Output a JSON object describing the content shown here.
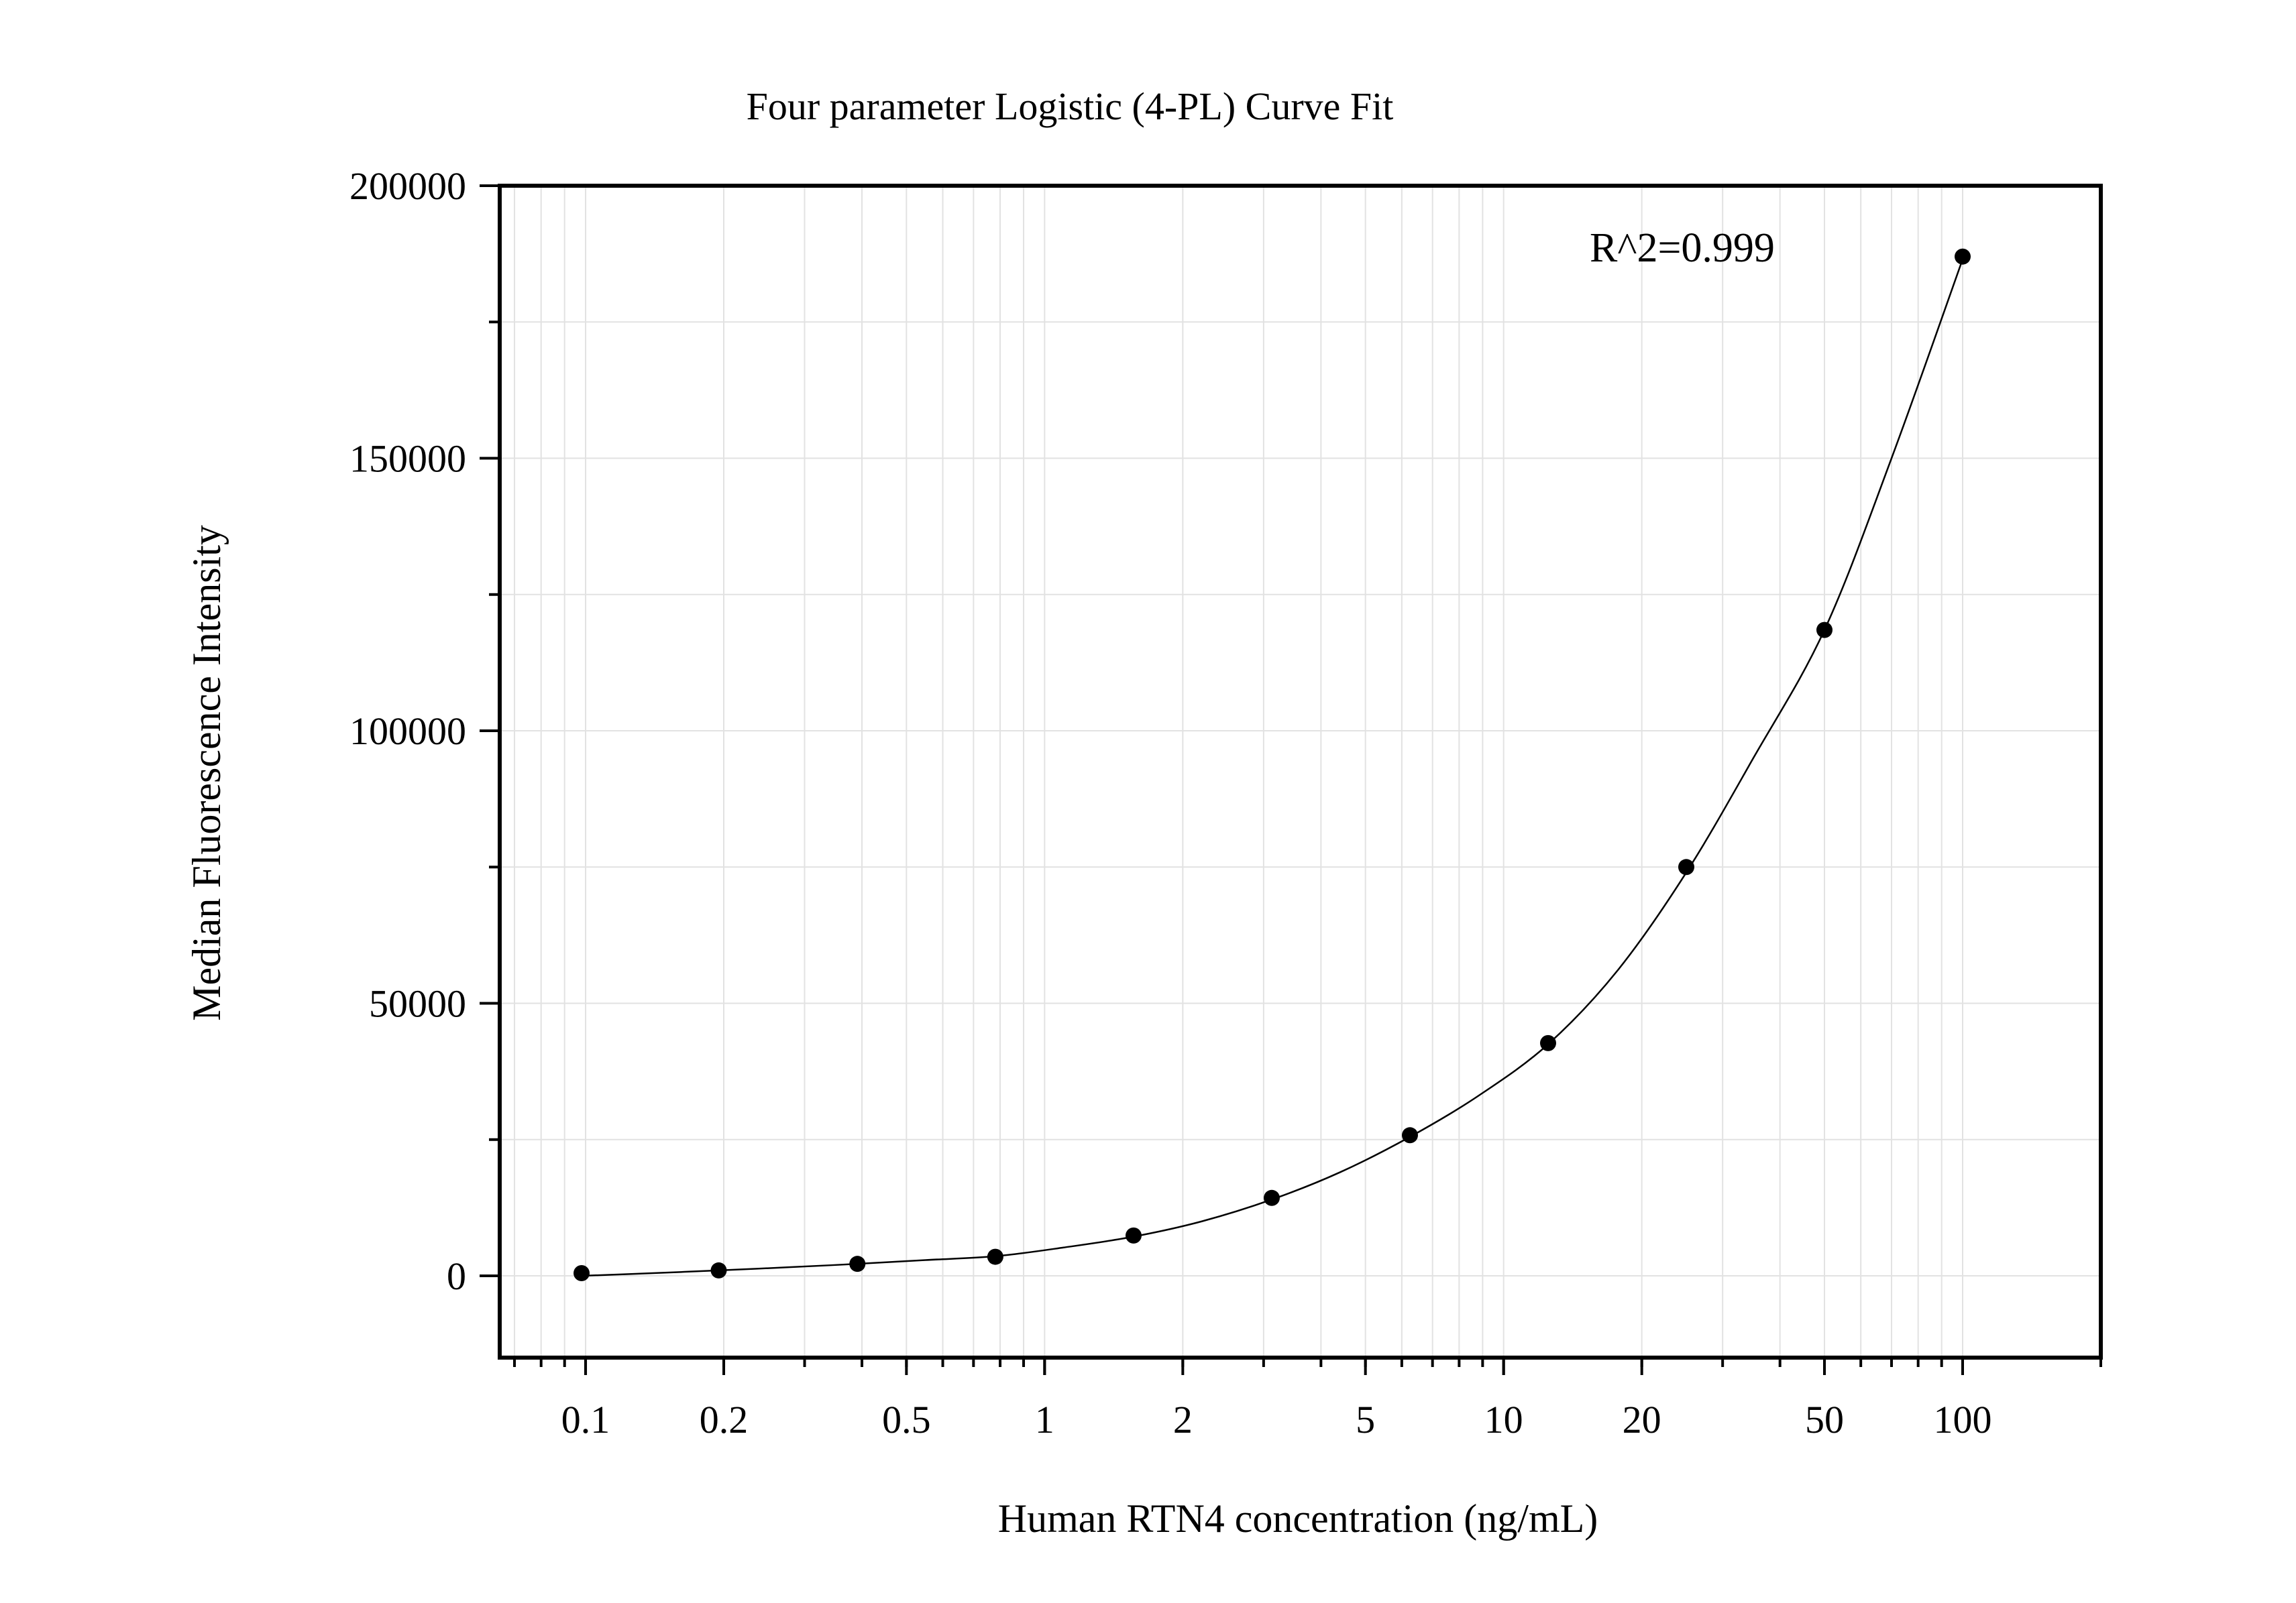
{
  "chart_data": {
    "type": "scatter",
    "title": "Four parameter Logistic (4-PL) Curve Fit",
    "xlabel": "Human RTN4 concentration (ng/mL)",
    "ylabel": "Median Fluorescence Intensity",
    "x_scale": "log",
    "xlim": [
      0.065,
      200
    ],
    "ylim": [
      -15000,
      200000
    ],
    "x_ticks": [
      0.1,
      0.2,
      0.5,
      1,
      2,
      5,
      10,
      20,
      50,
      100
    ],
    "x_tick_labels": [
      "0.1",
      "0.2",
      "0.5",
      "1",
      "2",
      "5",
      "10",
      "20",
      "50",
      "100"
    ],
    "y_ticks": [
      0,
      50000,
      100000,
      150000,
      200000
    ],
    "y_tick_labels": [
      "0",
      "50000",
      "100000",
      "150000",
      "200000"
    ],
    "grid": true,
    "annotation": "R^2=0.999",
    "series": [
      {
        "type": "scatter",
        "x": [
          0.098,
          0.195,
          0.391,
          0.781,
          1.5625,
          3.125,
          6.25,
          12.5,
          25,
          50,
          100
        ],
        "y": [
          500,
          1000,
          2200,
          3500,
          7400,
          14300,
          25800,
          42700,
          75000,
          118500,
          187000
        ]
      },
      {
        "type": "line",
        "x": [
          0.098,
          0.14,
          0.195,
          0.28,
          0.391,
          0.55,
          0.781,
          1.1,
          1.5625,
          2.2,
          3.125,
          4.4,
          6.25,
          8.8,
          12.5,
          17.7,
          25,
          35,
          50,
          70,
          100
        ],
        "y": [
          0,
          500,
          1000,
          1600,
          2200,
          2900,
          3600,
          5200,
          7200,
          10000,
          14000,
          19000,
          25500,
          33000,
          42500,
          56000,
          74000,
          95000,
          118500,
          150000,
          186500
        ]
      }
    ]
  }
}
